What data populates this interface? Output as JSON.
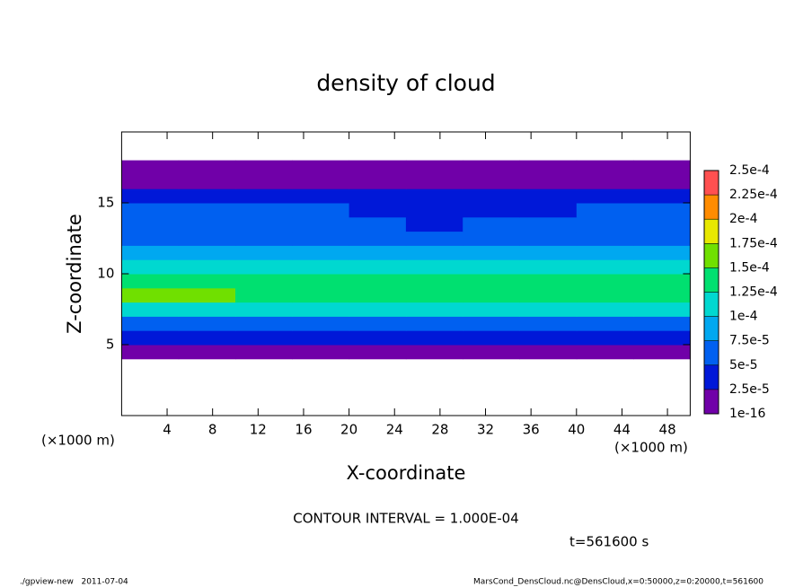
{
  "chart_data": {
    "type": "heatmap",
    "title": "density of cloud",
    "x_label": "X-coordinate",
    "y_label": "Z-coordinate",
    "x_unit": "(×1000 m)",
    "x": [
      2.5,
      7.5,
      12.5,
      17.5,
      22.5,
      27.5,
      32.5,
      37.5,
      42.5,
      47.5
    ],
    "y": [
      0.5,
      1.5,
      2.5,
      3.5,
      4.5,
      5.5,
      6.5,
      7.5,
      8.5,
      9.5,
      10.5,
      11.5,
      12.5,
      13.5,
      14.5,
      15.5,
      16.5,
      17.5,
      18.5,
      19.5
    ],
    "values": [
      [
        null,
        null,
        null,
        null,
        null,
        null,
        null,
        null,
        null,
        null
      ],
      [
        null,
        null,
        null,
        null,
        null,
        null,
        null,
        null,
        null,
        null
      ],
      [
        null,
        null,
        null,
        null,
        null,
        null,
        null,
        null,
        null,
        null
      ],
      [
        null,
        null,
        null,
        null,
        null,
        null,
        null,
        null,
        null,
        null
      ],
      [
        1e-05,
        1e-05,
        1e-05,
        1e-05,
        1e-05,
        1e-05,
        1e-05,
        1e-05,
        1e-05,
        1e-05
      ],
      [
        3e-05,
        3e-05,
        3e-05,
        2.5e-05,
        3e-05,
        3e-05,
        3e-05,
        3e-05,
        3e-05,
        2.5e-05
      ],
      [
        7e-05,
        7e-05,
        6e-05,
        6e-05,
        6e-05,
        7e-05,
        7e-05,
        6e-05,
        7e-05,
        7e-05
      ],
      [
        0.00011,
        0.00012,
        0.00011,
        0.0001,
        0.0001,
        0.00011,
        0.00011,
        0.0001,
        0.00011,
        0.00011
      ],
      [
        0.000155,
        0.00016,
        0.00014,
        0.00013,
        0.00013,
        0.000135,
        0.00014,
        0.000135,
        0.00013,
        0.00013
      ],
      [
        0.00014,
        0.000145,
        0.00013,
        0.00013,
        0.000125,
        0.00013,
        0.00013,
        0.000125,
        0.000125,
        0.00013
      ],
      [
        0.00011,
        0.00011,
        0.00011,
        0.00011,
        0.000105,
        0.000105,
        0.000105,
        0.000105,
        0.000105,
        0.00011
      ],
      [
        8e-05,
        8e-05,
        8.5e-05,
        8e-05,
        7.5e-05,
        7.5e-05,
        7.5e-05,
        7.5e-05,
        8e-05,
        8e-05
      ],
      [
        6e-05,
        6e-05,
        6.5e-05,
        6e-05,
        5.5e-05,
        5e-05,
        5.5e-05,
        5.5e-05,
        6e-05,
        6e-05
      ],
      [
        5.5e-05,
        5.5e-05,
        6e-05,
        5.5e-05,
        5e-05,
        4.5e-05,
        5e-05,
        5e-05,
        5e-05,
        5e-05
      ],
      [
        5.5e-05,
        5e-05,
        5e-05,
        5e-05,
        4.5e-05,
        4.5e-05,
        4.5e-05,
        4.5e-05,
        5e-05,
        5e-05
      ],
      [
        4.5e-05,
        4.5e-05,
        4.5e-05,
        4e-05,
        4e-05,
        4e-05,
        4e-05,
        4e-05,
        4e-05,
        4e-05
      ],
      [
        2e-05,
        2e-05,
        2e-05,
        2e-05,
        2e-05,
        2e-05,
        2e-05,
        2e-05,
        2e-05,
        2e-05
      ],
      [
        1e-05,
        1e-05,
        1e-05,
        1e-05,
        1e-05,
        1e-05,
        1e-05,
        1e-05,
        1e-05,
        1e-05
      ],
      [
        null,
        null,
        null,
        null,
        null,
        null,
        null,
        null,
        null,
        null
      ],
      [
        null,
        null,
        null,
        null,
        null,
        null,
        null,
        null,
        null,
        null
      ]
    ],
    "xlim": [
      0,
      50
    ],
    "ylim": [
      0,
      20
    ],
    "xticks": [
      4,
      8,
      12,
      16,
      20,
      24,
      28,
      32,
      36,
      40,
      44,
      48
    ],
    "yticks": [
      5,
      10,
      15
    ],
    "colorbar": {
      "levels": [
        {
          "value": 1e-16,
          "label": "1e-16"
        },
        {
          "value": 2.5e-05,
          "label": "2.5e-5"
        },
        {
          "value": 5e-05,
          "label": "5e-5"
        },
        {
          "value": 7.5e-05,
          "label": "7.5e-5"
        },
        {
          "value": 0.0001,
          "label": "1e-4"
        },
        {
          "value": 0.000125,
          "label": "1.25e-4"
        },
        {
          "value": 0.00015,
          "label": "1.5e-4"
        },
        {
          "value": 0.000175,
          "label": "1.75e-4"
        },
        {
          "value": 0.0002,
          "label": "2e-4"
        },
        {
          "value": 0.000225,
          "label": "2.25e-4"
        },
        {
          "value": 0.00025,
          "label": "2.5e-4"
        }
      ],
      "colors": [
        "#7000a8",
        "#0018d8",
        "#0060f0",
        "#00a8f0",
        "#00d8d0",
        "#00e070",
        "#70e000",
        "#e8e800",
        "#ff8c00",
        "#ff5050"
      ]
    },
    "contour_note": "CONTOUR INTERVAL = 1.000E-04",
    "time_note": "t=561600 s",
    "footer_left": "./gpview-new   2011-07-04",
    "footer_right": "MarsCond_DensCloud.nc@DensCloud,x=0:50000,z=0:20000,t=561600"
  }
}
